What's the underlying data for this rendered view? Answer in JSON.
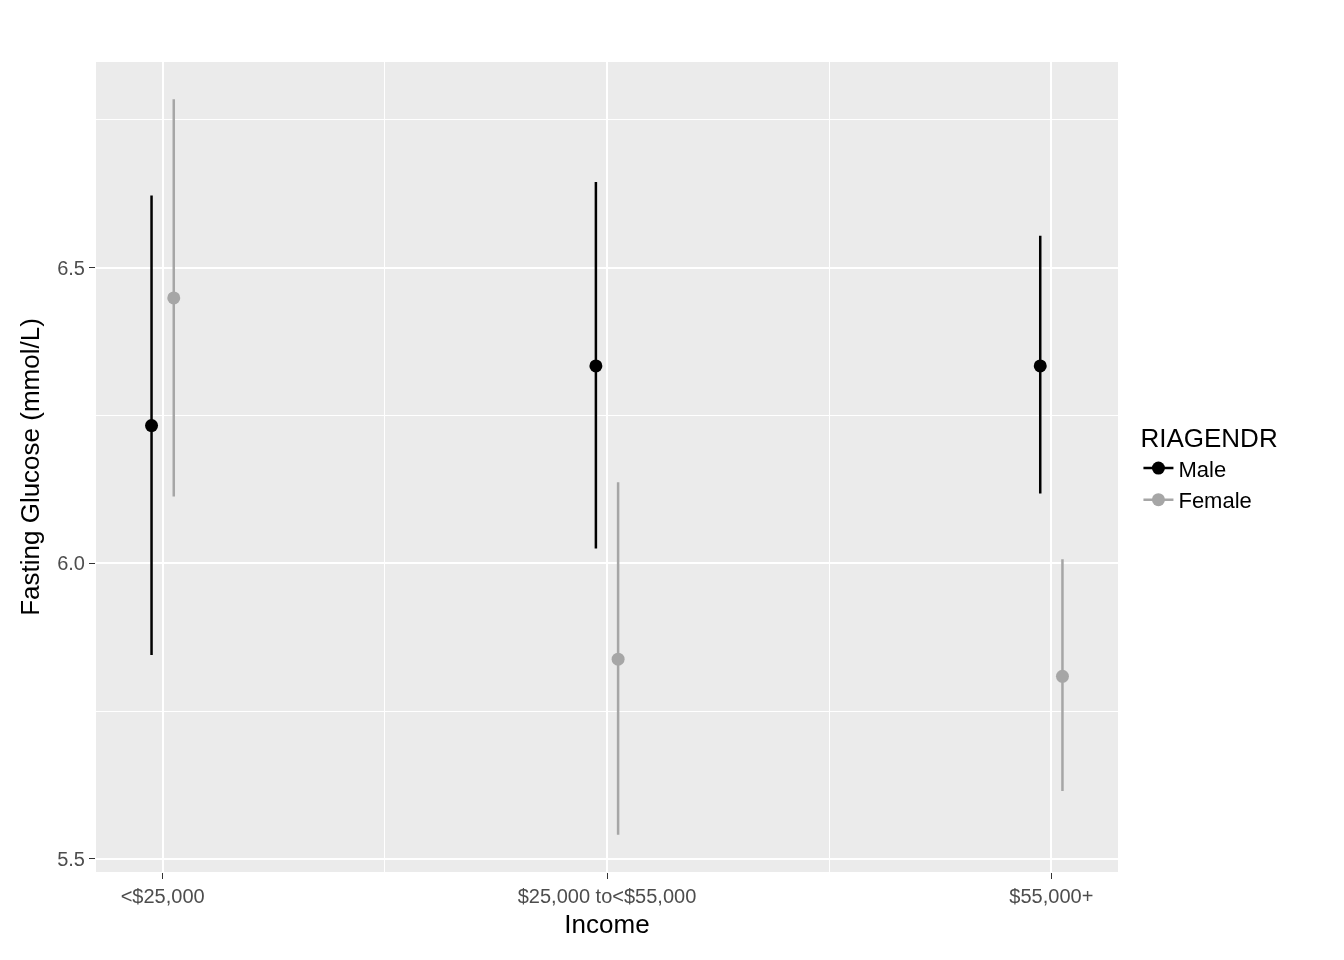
{
  "chart_data": {
    "type": "scatter",
    "xlabel": "Income",
    "ylabel": "Fasting Glucose (mmol/L)",
    "legend_title": "RIAGENDR",
    "categories": [
      "<$25,000",
      "$25,000 to<$55,000",
      "$55,000+"
    ],
    "series": [
      {
        "name": "Male",
        "color": "#000000",
        "values": [
          6.233,
          6.334,
          6.334
        ],
        "errors": [
          [
            5.845,
            6.622
          ],
          [
            6.025,
            6.645
          ],
          [
            6.118,
            6.554
          ]
        ]
      },
      {
        "name": "Female",
        "color": "#a6a6a6",
        "values": [
          6.449,
          5.838,
          5.809
        ],
        "errors": [
          [
            6.113,
            6.785
          ],
          [
            5.541,
            6.137
          ],
          [
            5.615,
            6.007
          ]
        ]
      }
    ],
    "ylim": [
      5.478,
      6.848
    ],
    "yticks": [
      5.5,
      {
        "value": 6,
        "label": "6.0"
      },
      6.5
    ],
    "grid": true,
    "legend": "right",
    "marker": "circle"
  }
}
